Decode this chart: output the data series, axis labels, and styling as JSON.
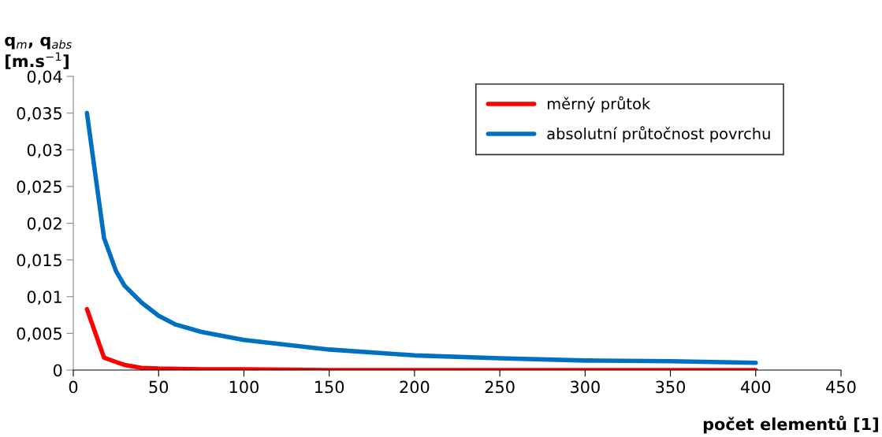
{
  "chart_data": {
    "type": "line",
    "xlabel": "počet elementů [1]",
    "ylabel": "q$_{m}$, q$_{abs}$\n[m.s$^{−1}$]",
    "xlim": [
      0,
      450
    ],
    "xticks": [
      0,
      50,
      100,
      150,
      200,
      250,
      300,
      350,
      400,
      450
    ],
    "ylim": [
      0,
      0.04
    ],
    "yticks": [
      0,
      {
        "value": 0.005,
        "label": "0,005"
      },
      {
        "value": 0.01,
        "label": "0,01"
      },
      {
        "value": 0.015,
        "label": "0,015"
      },
      {
        "value": 0.02,
        "label": "0,02"
      },
      {
        "value": 0.025,
        "label": "0,025"
      },
      {
        "value": 0.03,
        "label": "0,03"
      },
      {
        "value": 0.035,
        "label": "0,035"
      },
      {
        "value": 0.04,
        "label": "0,04"
      }
    ],
    "grid": false,
    "legend": "top right",
    "marker": "none",
    "line_style": "solid",
    "series": [
      {
        "name": "měrný průtok",
        "color": "#ff0000",
        "x": [
          8,
          18,
          25,
          30,
          40,
          50,
          75,
          100,
          150,
          200,
          250,
          300,
          350,
          400
        ],
        "values": [
          0.0083,
          0.0017,
          0.0011,
          0.0007,
          0.0003,
          0.0002,
          0.0001,
          0.0001,
          0,
          0,
          0,
          0,
          0,
          0
        ]
      },
      {
        "name": "absolutní průtočnost povrchu",
        "color": "#0070c0",
        "x": [
          8,
          18,
          25,
          30,
          40,
          50,
          60,
          75,
          100,
          150,
          200,
          250,
          300,
          350,
          400
        ],
        "values": [
          0.035,
          0.018,
          0.0135,
          0.0115,
          0.0092,
          0.0074,
          0.0062,
          0.0052,
          0.0041,
          0.0028,
          0.002,
          0.0016,
          0.0013,
          0.0012,
          0.001
        ]
      }
    ]
  }
}
